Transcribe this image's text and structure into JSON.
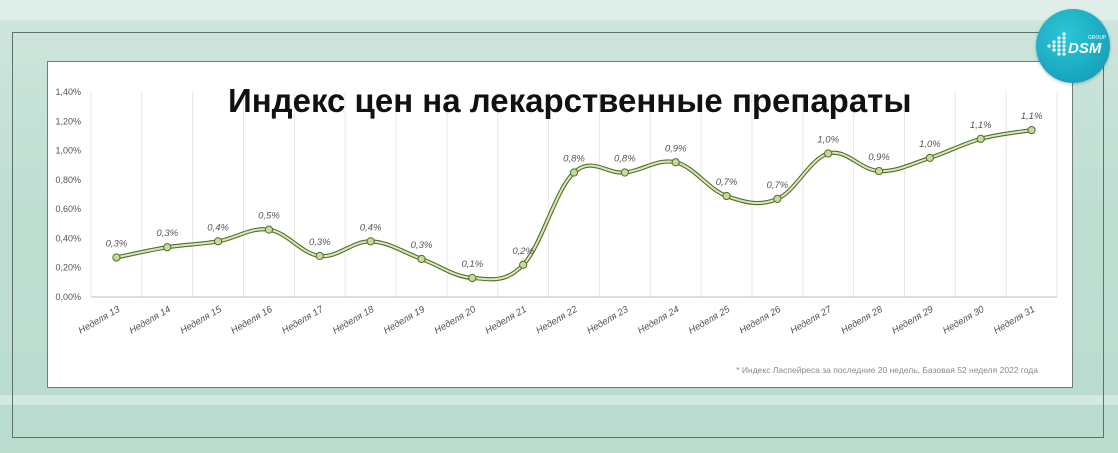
{
  "title": "Индекс цен на лекарственные препараты",
  "footnote": "* Индекс Ласпейреса за последние 20 недель, Базовая 52 неделя 2022 года",
  "logo": {
    "text": "DSM",
    "small_text": "GROUP",
    "icon": "dsm-logo-icon",
    "color": "#17b0c6"
  },
  "colors": {
    "line": "#8fae5c",
    "line_outline": "#4f6d2a",
    "marker": "#c5db9c",
    "grid": "#e6e6e6"
  },
  "chart_data": {
    "type": "line",
    "smooth": true,
    "title": "Индекс цен на лекарственные препараты",
    "categories": [
      "Неделя 13",
      "Неделя 14",
      "Неделя 15",
      "Неделя 16",
      "Неделя 17",
      "Неделя 18",
      "Неделя 19",
      "Неделя 20",
      "Неделя 21",
      "Неделя 22",
      "Неделя 23",
      "Неделя 24",
      "Неделя 25",
      "Неделя 26",
      "Неделя 27",
      "Неделя 28",
      "Неделя 29",
      "Неделя 30",
      "Неделя 31"
    ],
    "values": [
      0.27,
      0.34,
      0.38,
      0.46,
      0.28,
      0.38,
      0.26,
      0.13,
      0.22,
      0.85,
      0.85,
      0.92,
      0.69,
      0.67,
      0.98,
      0.86,
      0.95,
      1.08,
      1.14
    ],
    "data_labels": [
      "0,3%",
      "0,3%",
      "0,4%",
      "0,5%",
      "0,3%",
      "0,4%",
      "0,3%",
      "0,1%",
      "0,2%",
      "0,8%",
      "0,8%",
      "0,9%",
      "0,7%",
      "0,7%",
      "1,0%",
      "0,9%",
      "1,0%",
      "1,1%",
      "1,1%"
    ],
    "ylim": [
      0,
      1.4
    ],
    "yticks": [
      "0,00%",
      "0,20%",
      "0,40%",
      "0,60%",
      "0,80%",
      "1,00%",
      "1,20%",
      "1,40%"
    ],
    "grid": "vertical",
    "legend": "none"
  }
}
